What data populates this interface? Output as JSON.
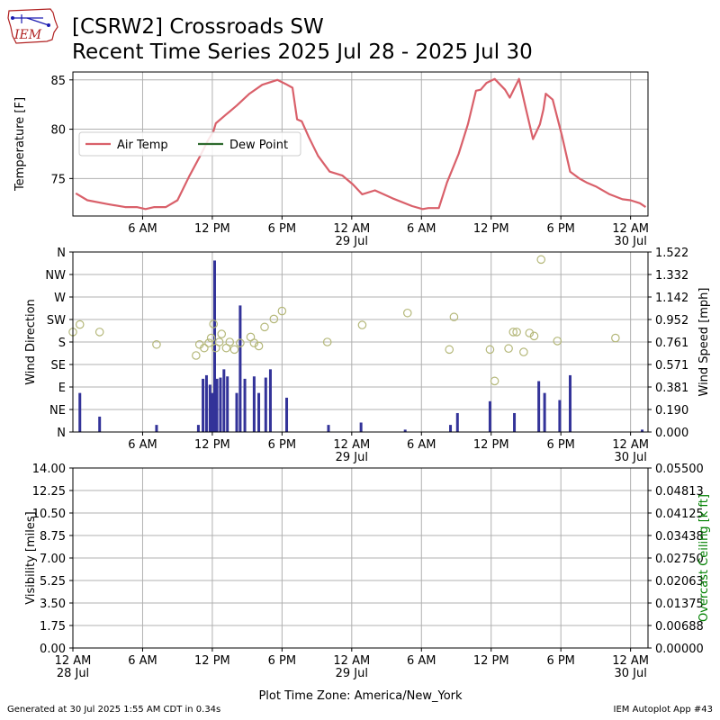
{
  "logo": {
    "text": "IEM"
  },
  "header": {
    "title": "[CSRW2] Crossroads SW",
    "subtitle": "Recent Time Series 2025 Jul 28 - 2025 Jul 30"
  },
  "footer": {
    "left": "Generated at 30 Jul 2025 1:55 AM CDT in 0.34s",
    "right": "IEM Autoplot App #43"
  },
  "colors": {
    "air_temp": "#d9606a",
    "dew_point": "#2e6a2e",
    "wind_speed_bar": "#333399",
    "wind_dir_marker": "#b5b87a",
    "ceiling_label": "#008000",
    "grid": "#b0b0b0"
  },
  "chart_data": [
    {
      "type": "line",
      "panel": "temperature",
      "ylabel": "Temperature [F]",
      "ylim": [
        71.2,
        85.8
      ],
      "yticks": [
        75,
        80,
        85
      ],
      "x_unit": "hours since 2025-07-28 00:00 America/New_York",
      "xlim": [
        0,
        49.5
      ],
      "xtick_hours": [
        6,
        12,
        18,
        24,
        30,
        36,
        42,
        48
      ],
      "xtick_labels": [
        "6 AM",
        "12 PM",
        "6 PM",
        "12 AM\n29 Jul",
        "6 AM",
        "12 PM",
        "6 PM",
        "12 AM\n30 Jul"
      ],
      "legend": {
        "placement": "upper-left",
        "entries": [
          "Air Temp",
          "Dew Point"
        ]
      },
      "grid": true,
      "series": [
        {
          "name": "Air Temp",
          "x": [
            0.25,
            1.25,
            3.0,
            4.5,
            5.5,
            6.25,
            7.0,
            8.0,
            9.0,
            10.0,
            11.0,
            11.6,
            12.1,
            12.3,
            13.2,
            14.1,
            15.2,
            16.3,
            17.6,
            18.3,
            18.9,
            19.3,
            19.7,
            20.3,
            21.1,
            22.1,
            23.2,
            24.1,
            24.9,
            26.0,
            27.5,
            29.2,
            30.1,
            30.6,
            31.5,
            32.2,
            33.2,
            34.0,
            34.7,
            35.1,
            35.6,
            36.3,
            37.2,
            37.6,
            38.4,
            39.0,
            39.6,
            40.2,
            40.5,
            40.7,
            41.3,
            42.1,
            42.8,
            43.6,
            44.2,
            45.0,
            46.2,
            47.3,
            48.0,
            48.8,
            49.3
          ],
          "y": [
            73.5,
            72.8,
            72.4,
            72.1,
            72.1,
            71.9,
            72.1,
            72.1,
            72.8,
            75.2,
            77.4,
            78.8,
            79.8,
            80.6,
            81.5,
            82.4,
            83.6,
            84.5,
            85.0,
            84.6,
            84.2,
            81.0,
            80.8,
            79.2,
            77.3,
            75.7,
            75.3,
            74.4,
            73.4,
            73.8,
            73.0,
            72.2,
            71.9,
            72.0,
            72.0,
            74.6,
            77.5,
            80.5,
            83.9,
            84.0,
            84.7,
            85.1,
            84.0,
            83.2,
            85.1,
            82.0,
            79.0,
            80.5,
            82.0,
            83.6,
            83.0,
            79.3,
            75.7,
            75.0,
            74.6,
            74.2,
            73.4,
            72.9,
            72.8,
            72.5,
            72.1
          ]
        },
        {
          "name": "Dew Point",
          "x": [],
          "y": []
        }
      ]
    },
    {
      "type": "bar",
      "panel": "wind",
      "ylabel": "Wind Direction",
      "ylabel_right": "Wind Speed [mph]",
      "ylim_left": [
        0,
        360
      ],
      "yticks_left": [
        "N",
        "NE",
        "E",
        "SE",
        "S",
        "SW",
        "W",
        "NW",
        "N"
      ],
      "ylim_right": [
        0,
        1.522
      ],
      "yticks_right": [
        "0.000",
        "0.190",
        "0.381",
        "0.571",
        "0.761",
        "0.952",
        "1.142",
        "1.332",
        "1.522"
      ],
      "xlim": [
        0,
        49.5
      ],
      "xtick_hours": [
        6,
        12,
        18,
        24,
        30,
        36,
        42,
        48
      ],
      "xtick_labels": [
        "6 AM",
        "12 PM",
        "6 PM",
        "12 AM\n29 Jul",
        "6 AM",
        "12 PM",
        "6 PM",
        "12 AM\n30 Jul"
      ],
      "grid": true,
      "series": [
        {
          "name": "Wind Speed",
          "x": [
            0.6,
            2.3,
            7.2,
            10.8,
            11.2,
            11.5,
            11.8,
            12.0,
            12.2,
            12.4,
            12.7,
            13.0,
            13.3,
            14.1,
            14.4,
            14.8,
            15.6,
            16.0,
            16.6,
            17.0,
            18.4,
            22.0,
            24.8,
            28.6,
            32.5,
            33.1,
            35.9,
            38.0,
            40.1,
            40.6,
            41.9,
            42.8,
            49.0
          ],
          "y": [
            0.33,
            0.13,
            0.06,
            0.06,
            0.45,
            0.48,
            0.4,
            0.33,
            1.45,
            0.45,
            0.46,
            0.53,
            0.47,
            0.33,
            1.07,
            0.45,
            0.47,
            0.33,
            0.46,
            0.53,
            0.29,
            0.06,
            0.08,
            0.02,
            0.06,
            0.16,
            0.26,
            0.16,
            0.43,
            0.33,
            0.27,
            0.48,
            0.02
          ]
        },
        {
          "name": "Wind Direction",
          "x": [
            0.0,
            0.6,
            2.3,
            7.2,
            10.6,
            10.9,
            11.3,
            11.7,
            11.9,
            12.1,
            12.3,
            12.6,
            12.8,
            13.2,
            13.5,
            13.9,
            14.4,
            15.3,
            15.6,
            16.0,
            16.5,
            17.3,
            18.0,
            21.9,
            24.9,
            28.8,
            32.4,
            32.8,
            35.9,
            36.3,
            37.5,
            37.9,
            38.2,
            38.8,
            39.3,
            39.7,
            40.3,
            41.7,
            46.7
          ],
          "y": [
            200,
            215,
            200,
            175,
            153,
            175,
            168,
            178,
            188,
            216,
            168,
            180,
            196,
            168,
            180,
            165,
            178,
            190,
            178,
            172,
            210,
            226,
            242,
            180,
            214,
            238,
            165,
            230,
            165,
            102,
            167,
            200,
            200,
            160,
            198,
            192,
            345,
            182,
            188
          ]
        }
      ]
    },
    {
      "type": "line",
      "panel": "visibility",
      "ylabel": "Visibility [miles]",
      "ylabel_right": "Overcast Ceiling [k ft]",
      "ylim_left": [
        0,
        14
      ],
      "yticks_left": [
        "0.00",
        "1.75",
        "3.50",
        "5.25",
        "7.00",
        "8.75",
        "10.50",
        "12.25",
        "14.00"
      ],
      "ylim_right": [
        0,
        0.055
      ],
      "yticks_right": [
        "0.00000",
        "0.00688",
        "0.01375",
        "0.02063",
        "0.02750",
        "0.03438",
        "0.04125",
        "0.04813",
        "0.05500"
      ],
      "xlim": [
        0,
        49.5
      ],
      "xtick_hours": [
        0,
        6,
        12,
        18,
        24,
        30,
        36,
        42,
        48
      ],
      "xtick_labels": [
        "12 AM\n28 Jul",
        "6 AM",
        "12 PM",
        "6 PM",
        "12 AM\n29 Jul",
        "6 AM",
        "12 PM",
        "6 PM",
        "12 AM\n30 Jul"
      ],
      "xlabel": "Plot Time Zone: America/New_York",
      "grid": true,
      "series": []
    }
  ]
}
